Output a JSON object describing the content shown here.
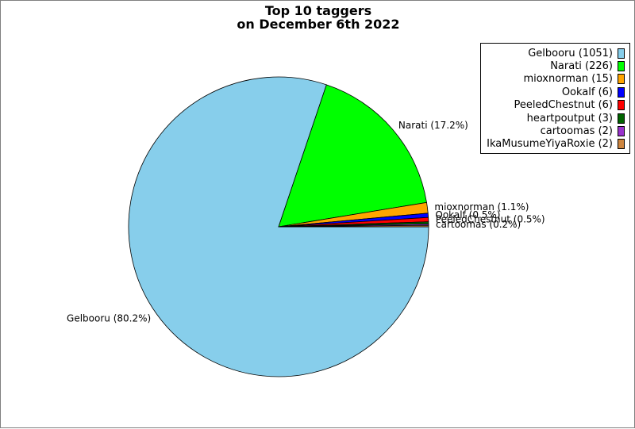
{
  "chart_data": {
    "type": "pie",
    "title": [
      "Top 10 taggers",
      "on December 6th 2022"
    ],
    "start_angle_deg": 0,
    "direction": "clockwise",
    "slices": [
      {
        "name": "Gelbooru",
        "value": 1051,
        "color": "#87ceeb",
        "legend": "Gelbooru (1051)",
        "label": "Gelbooru (80.2%)"
      },
      {
        "name": "Narati",
        "value": 226,
        "color": "#00ff00",
        "legend": "Narati (226)",
        "label": "Narati (17.2%)"
      },
      {
        "name": "mioxnorman",
        "value": 15,
        "color": "#ffa500",
        "legend": "mioxnorman (15)",
        "label": "mioxnorman (1.1%)"
      },
      {
        "name": "Ookalf",
        "value": 6,
        "color": "#0000ff",
        "legend": "Ookalf (6)",
        "label": "Ookalf (0.5%)"
      },
      {
        "name": "PeeledChestnut",
        "value": 6,
        "color": "#ff0000",
        "legend": "PeeledChestnut (6)",
        "label": "PeeledChestnut (0.5%)"
      },
      {
        "name": "heartpoutput",
        "value": 3,
        "color": "#006400",
        "legend": "heartpoutput (3)",
        "label": "heartpoutput (0.2%)"
      },
      {
        "name": "cartoomas",
        "value": 2,
        "color": "#9932cc",
        "legend": "cartoomas (2)",
        "label": "cartoomas (0.2%)"
      },
      {
        "name": "IkaMusumeYiyaRoxie",
        "value": 2,
        "color": "#cd853f",
        "legend": "IkaMusumeYiyaRoxie (2)",
        "label": "IkaMusumeYiyaRoxie (0.2%)"
      }
    ],
    "legend_position": "top-right"
  }
}
